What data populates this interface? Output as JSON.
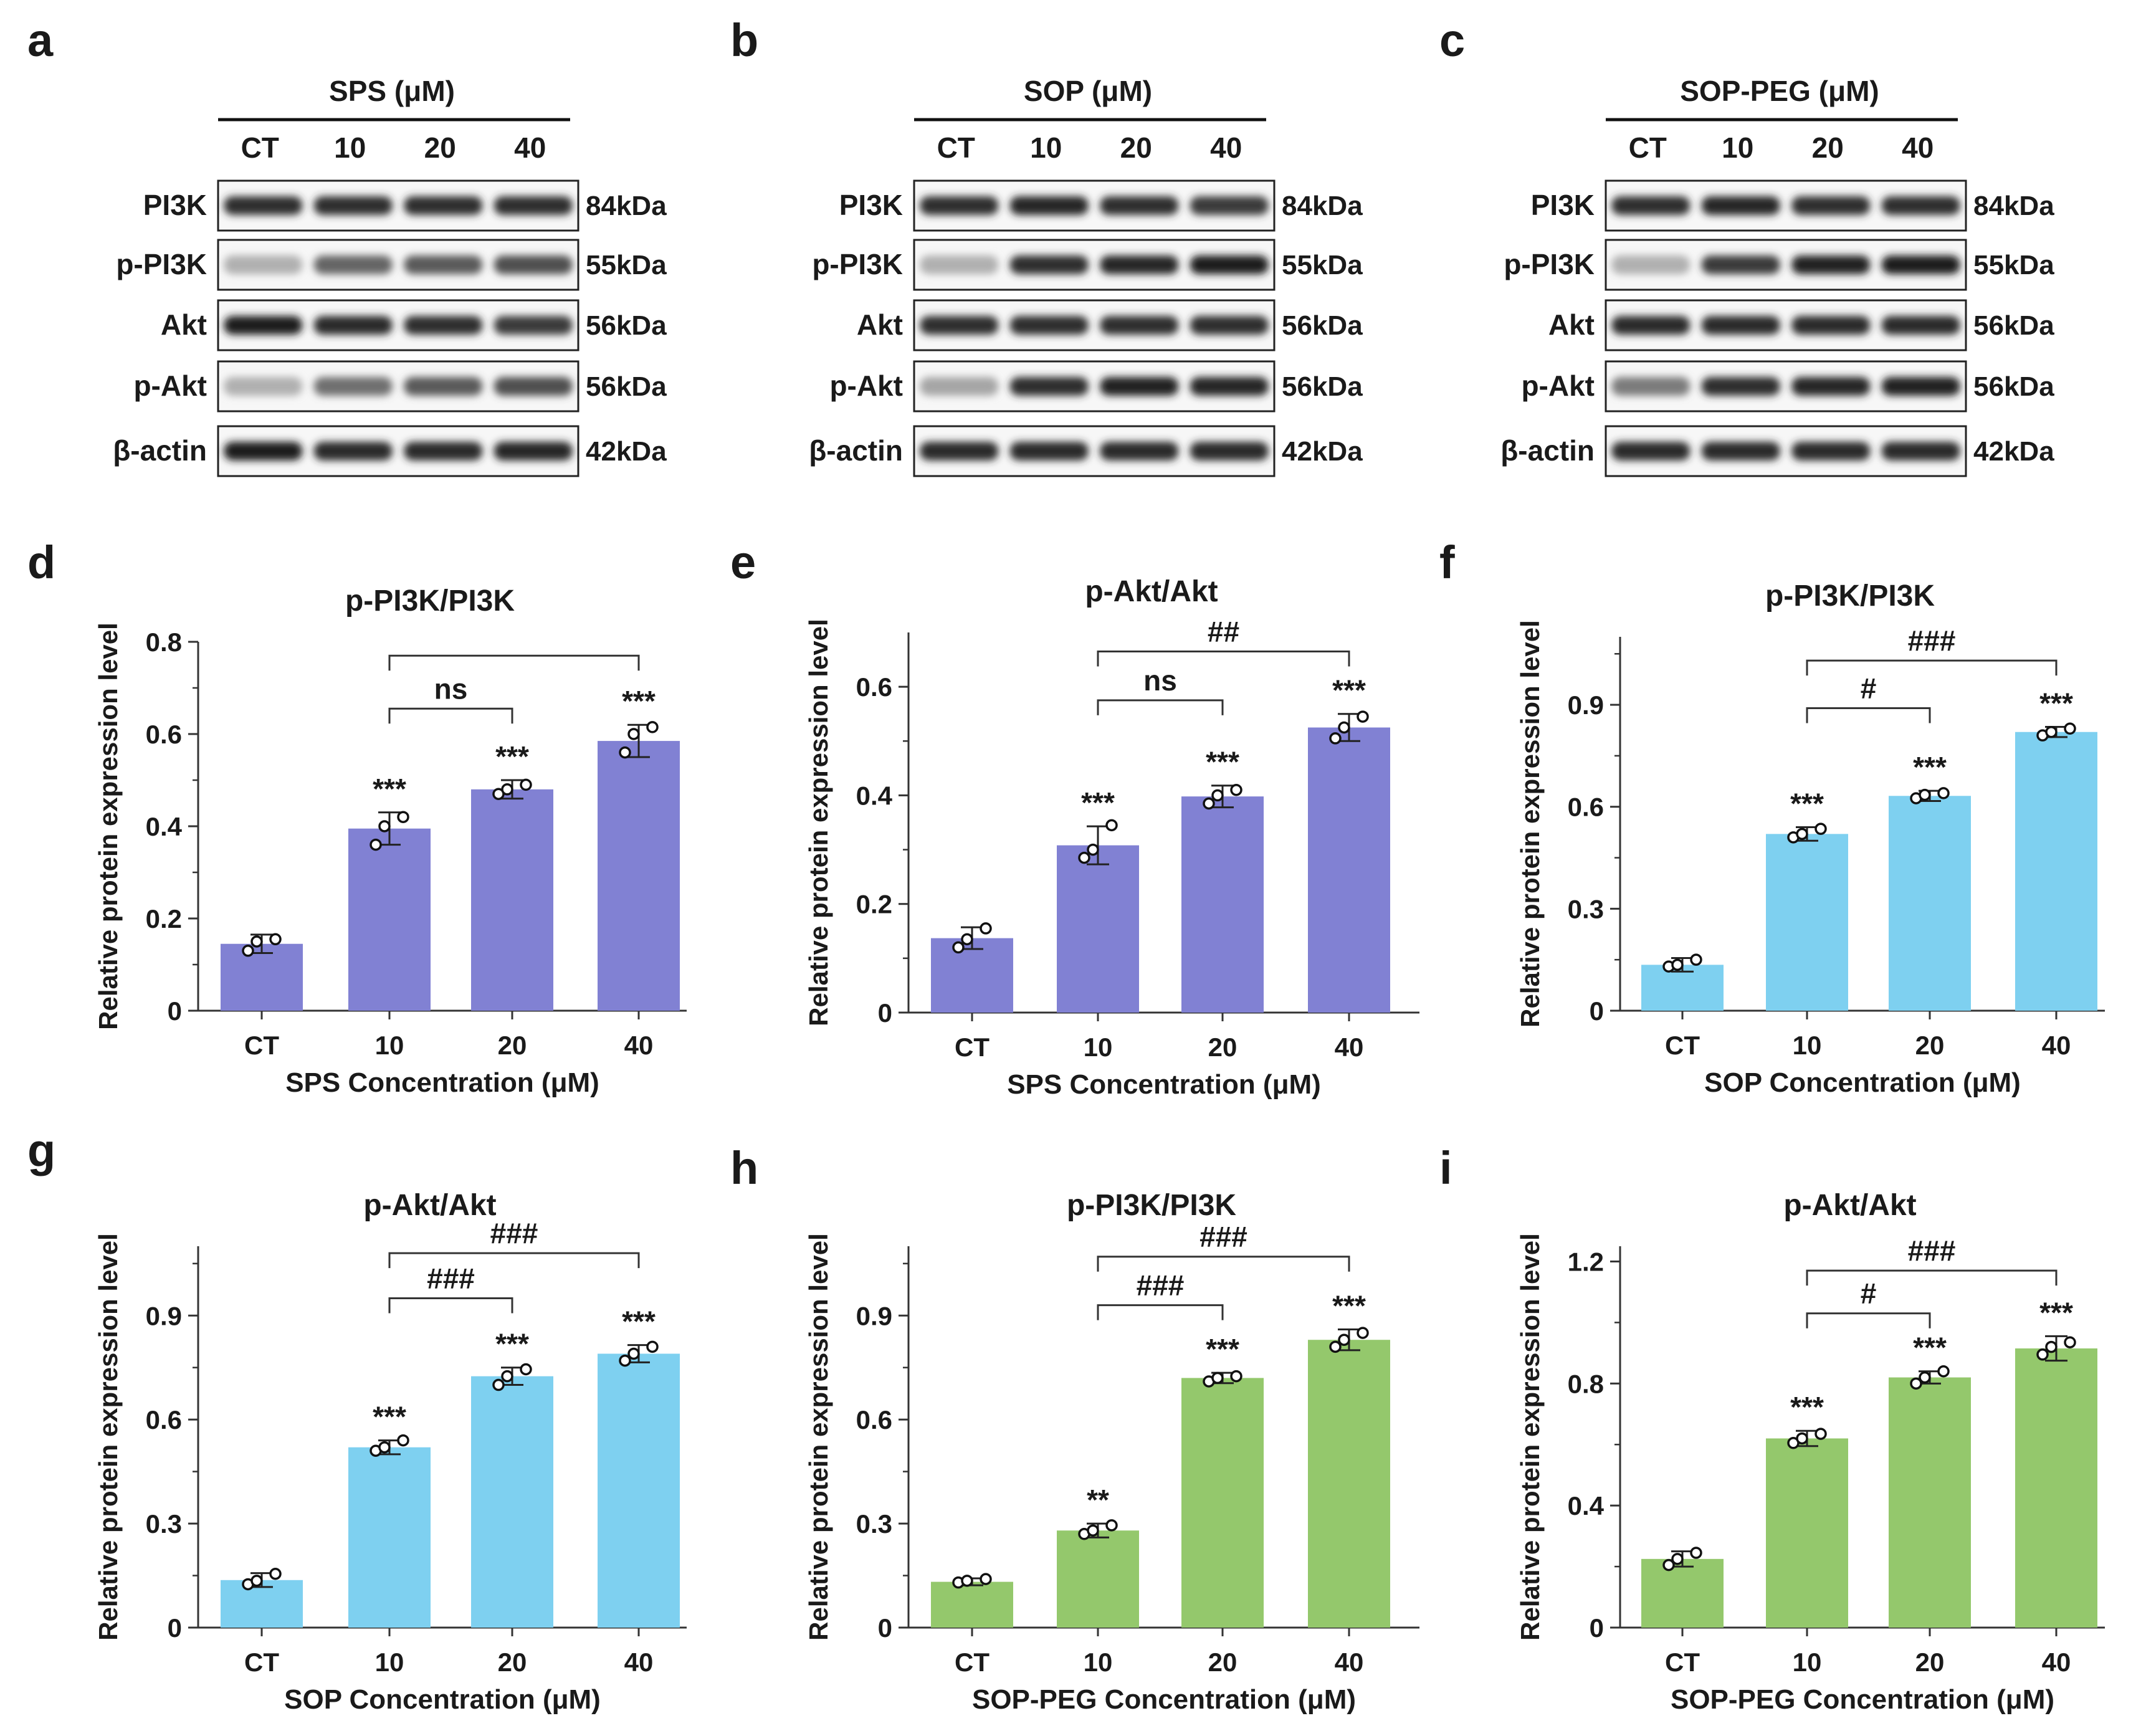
{
  "western_blots": [
    {
      "panel": "a",
      "title": "SPS (μM)",
      "lanes": [
        "CT",
        "10",
        "20",
        "40"
      ],
      "proteins": [
        {
          "name": "PI3K",
          "kda": "84kDa",
          "intensity": [
            0.85,
            0.85,
            0.85,
            0.85
          ]
        },
        {
          "name": "p-PI3K",
          "kda": "55kDa",
          "intensity": [
            0.25,
            0.6,
            0.65,
            0.7
          ]
        },
        {
          "name": "Akt",
          "kda": "56kDa",
          "intensity": [
            0.95,
            0.88,
            0.85,
            0.8
          ]
        },
        {
          "name": "p-Akt",
          "kda": "56kDa",
          "intensity": [
            0.25,
            0.55,
            0.65,
            0.7
          ]
        },
        {
          "name": "β-actin",
          "kda": "42kDa",
          "intensity": [
            0.95,
            0.88,
            0.88,
            0.9
          ]
        }
      ]
    },
    {
      "panel": "b",
      "title": "SOP (μM)",
      "lanes": [
        "CT",
        "10",
        "20",
        "40"
      ],
      "proteins": [
        {
          "name": "PI3K",
          "kda": "84kDa",
          "intensity": [
            0.85,
            0.9,
            0.85,
            0.8
          ]
        },
        {
          "name": "p-PI3K",
          "kda": "55kDa",
          "intensity": [
            0.25,
            0.85,
            0.9,
            0.95
          ]
        },
        {
          "name": "Akt",
          "kda": "56kDa",
          "intensity": [
            0.85,
            0.85,
            0.85,
            0.85
          ]
        },
        {
          "name": "p-Akt",
          "kda": "56kDa",
          "intensity": [
            0.3,
            0.85,
            0.92,
            0.9
          ]
        },
        {
          "name": "β-actin",
          "kda": "42kDa",
          "intensity": [
            0.88,
            0.88,
            0.88,
            0.88
          ]
        }
      ]
    },
    {
      "panel": "c",
      "title": "SOP-PEG (μM)",
      "lanes": [
        "CT",
        "10",
        "20",
        "40"
      ],
      "proteins": [
        {
          "name": "PI3K",
          "kda": "84kDa",
          "intensity": [
            0.85,
            0.9,
            0.85,
            0.85
          ]
        },
        {
          "name": "p-PI3K",
          "kda": "55kDa",
          "intensity": [
            0.25,
            0.8,
            0.92,
            0.95
          ]
        },
        {
          "name": "Akt",
          "kda": "56kDa",
          "intensity": [
            0.88,
            0.88,
            0.88,
            0.88
          ]
        },
        {
          "name": "p-Akt",
          "kda": "56kDa",
          "intensity": [
            0.5,
            0.85,
            0.9,
            0.92
          ]
        },
        {
          "name": "β-actin",
          "kda": "42kDa",
          "intensity": [
            0.88,
            0.88,
            0.88,
            0.88
          ]
        }
      ]
    }
  ],
  "chart_data": [
    {
      "panel": "d",
      "type": "bar",
      "title": "p-PI3K/PI3K",
      "categories": [
        "CT",
        "10",
        "20",
        "40"
      ],
      "values": [
        0.145,
        0.395,
        0.48,
        0.585
      ],
      "errors": [
        0.02,
        0.035,
        0.02,
        0.035
      ],
      "points": [
        [
          0.13,
          0.15,
          0.155
        ],
        [
          0.36,
          0.4,
          0.42
        ],
        [
          0.47,
          0.48,
          0.49
        ],
        [
          0.56,
          0.6,
          0.615
        ]
      ],
      "ylim": [
        0,
        0.8
      ],
      "yticks": [
        "0",
        "0.2",
        "0.4",
        "0.6",
        "0.8"
      ],
      "ytick_values": [
        0,
        0.2,
        0.4,
        0.6,
        0.8
      ],
      "xlabel": "SPS Concentration (μM)",
      "ylabel": "Relative protein expression level",
      "color": "#8181d3",
      "stars": [
        "",
        "***",
        "***",
        "***"
      ],
      "brackets": [
        {
          "from": 1,
          "to": 2,
          "label": "ns",
          "y": 0.655
        },
        {
          "from": 1,
          "to": 3,
          "label": "",
          "y": 0.77
        }
      ]
    },
    {
      "panel": "e",
      "type": "bar",
      "title": "p-Akt/Akt",
      "categories": [
        "CT",
        "10",
        "20",
        "40"
      ],
      "values": [
        0.137,
        0.308,
        0.398,
        0.525
      ],
      "errors": [
        0.02,
        0.035,
        0.02,
        0.025
      ],
      "points": [
        [
          0.12,
          0.135,
          0.155
        ],
        [
          0.285,
          0.3,
          0.345
        ],
        [
          0.385,
          0.4,
          0.41
        ],
        [
          0.505,
          0.525,
          0.545
        ]
      ],
      "ylim": [
        0,
        0.7
      ],
      "yticks": [
        "0",
        "0.2",
        "0.4",
        "0.6"
      ],
      "ytick_values": [
        0,
        0.2,
        0.4,
        0.6
      ],
      "xlabel": "SPS Concentration (μM)",
      "ylabel": "Relative protein expression level",
      "color": "#8181d3",
      "stars": [
        "",
        "***",
        "***",
        "***"
      ],
      "brackets": [
        {
          "from": 1,
          "to": 2,
          "label": "ns",
          "y": 0.575
        },
        {
          "from": 1,
          "to": 3,
          "label": "##",
          "y": 0.665
        }
      ]
    },
    {
      "panel": "f",
      "type": "bar",
      "title": "p-PI3K/PI3K",
      "categories": [
        "CT",
        "10",
        "20",
        "40"
      ],
      "values": [
        0.135,
        0.52,
        0.632,
        0.82
      ],
      "errors": [
        0.02,
        0.02,
        0.015,
        0.015
      ],
      "points": [
        [
          0.13,
          0.135,
          0.15
        ],
        [
          0.51,
          0.52,
          0.535
        ],
        [
          0.625,
          0.635,
          0.64
        ],
        [
          0.81,
          0.82,
          0.83
        ]
      ],
      "ylim": [
        0,
        1.1
      ],
      "yticks": [
        "0",
        "0.3",
        "0.6",
        "0.9"
      ],
      "ytick_values": [
        0,
        0.3,
        0.6,
        0.9
      ],
      "xlabel": "SOP Concentration (μM)",
      "ylabel": "Relative protein expression level",
      "color": "#7ed0f0",
      "stars": [
        "",
        "***",
        "***",
        "***"
      ],
      "brackets": [
        {
          "from": 1,
          "to": 2,
          "label": "#",
          "y": 0.89
        },
        {
          "from": 1,
          "to": 3,
          "label": "###",
          "y": 1.03
        }
      ]
    },
    {
      "panel": "g",
      "type": "bar",
      "title": "p-Akt/Akt",
      "categories": [
        "CT",
        "10",
        "20",
        "40"
      ],
      "values": [
        0.137,
        0.52,
        0.725,
        0.79
      ],
      "errors": [
        0.02,
        0.02,
        0.025,
        0.025
      ],
      "points": [
        [
          0.125,
          0.135,
          0.155
        ],
        [
          0.51,
          0.52,
          0.54
        ],
        [
          0.7,
          0.725,
          0.745
        ],
        [
          0.77,
          0.79,
          0.81
        ]
      ],
      "ylim": [
        0,
        1.1
      ],
      "yticks": [
        "0",
        "0.3",
        "0.6",
        "0.9"
      ],
      "ytick_values": [
        0,
        0.3,
        0.6,
        0.9
      ],
      "xlabel": "SOP Concentration (μM)",
      "ylabel": "Relative protein expression level",
      "color": "#7ed0f0",
      "stars": [
        "",
        "***",
        "***",
        "***"
      ],
      "brackets": [
        {
          "from": 1,
          "to": 2,
          "label": "###",
          "y": 0.95
        },
        {
          "from": 1,
          "to": 3,
          "label": "###",
          "y": 1.08
        }
      ]
    },
    {
      "panel": "h",
      "type": "bar",
      "title": "p-PI3K/PI3K",
      "categories": [
        "CT",
        "10",
        "20",
        "40"
      ],
      "values": [
        0.132,
        0.28,
        0.72,
        0.83
      ],
      "errors": [
        0.01,
        0.02,
        0.015,
        0.03
      ],
      "points": [
        [
          0.13,
          0.135,
          0.14
        ],
        [
          0.27,
          0.28,
          0.295
        ],
        [
          0.71,
          0.72,
          0.725
        ],
        [
          0.81,
          0.83,
          0.85
        ]
      ],
      "ylim": [
        0,
        1.1
      ],
      "yticks": [
        "0",
        "0.3",
        "0.6",
        "0.9"
      ],
      "ytick_values": [
        0,
        0.3,
        0.6,
        0.9
      ],
      "xlabel": "SOP-PEG Concentration (μM)",
      "ylabel": "Relative protein expression level",
      "color": "#94c86c",
      "stars": [
        "",
        "**",
        "***",
        "***"
      ],
      "brackets": [
        {
          "from": 1,
          "to": 2,
          "label": "###",
          "y": 0.93
        },
        {
          "from": 1,
          "to": 3,
          "label": "###",
          "y": 1.07
        }
      ]
    },
    {
      "panel": "i",
      "type": "bar",
      "title": "p-Akt/Akt",
      "categories": [
        "CT",
        "10",
        "20",
        "40"
      ],
      "values": [
        0.225,
        0.62,
        0.82,
        0.915
      ],
      "errors": [
        0.025,
        0.025,
        0.02,
        0.04
      ],
      "points": [
        [
          0.205,
          0.225,
          0.245
        ],
        [
          0.605,
          0.62,
          0.635
        ],
        [
          0.8,
          0.82,
          0.84
        ],
        [
          0.895,
          0.92,
          0.935
        ]
      ],
      "ylim": [
        0,
        1.25
      ],
      "yticks": [
        "0",
        "0.4",
        "0.8",
        "1.2"
      ],
      "ytick_values": [
        0,
        0.4,
        0.8,
        1.2
      ],
      "xlabel": "SOP-PEG Concentration (μM)",
      "ylabel": "Relative protein expression level",
      "color": "#94c86c",
      "stars": [
        "",
        "***",
        "***",
        "***"
      ],
      "brackets": [
        {
          "from": 1,
          "to": 2,
          "label": "#",
          "y": 1.03
        },
        {
          "from": 1,
          "to": 3,
          "label": "###",
          "y": 1.17
        }
      ]
    }
  ]
}
